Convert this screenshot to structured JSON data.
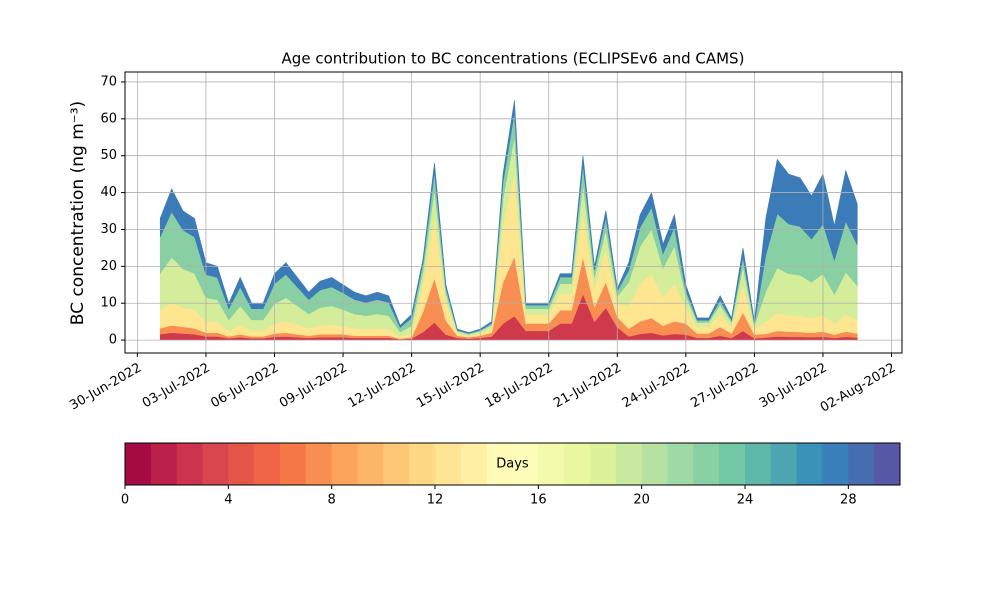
{
  "chart_data": {
    "type": "stacked_area",
    "title": "Age contribution to BC concentrations (ECLIPSEv6 and CAMS)",
    "y_label": "BC concentration (ng m⁻³)",
    "x": [
      "2022-07-01T00:00",
      "2022-07-01T12:00",
      "2022-07-02T00:00",
      "2022-07-02T12:00",
      "2022-07-03T00:00",
      "2022-07-03T12:00",
      "2022-07-04T00:00",
      "2022-07-04T12:00",
      "2022-07-05T00:00",
      "2022-07-05T12:00",
      "2022-07-06T00:00",
      "2022-07-06T12:00",
      "2022-07-07T00:00",
      "2022-07-07T12:00",
      "2022-07-08T00:00",
      "2022-07-08T12:00",
      "2022-07-09T00:00",
      "2022-07-09T12:00",
      "2022-07-10T00:00",
      "2022-07-10T12:00",
      "2022-07-11T00:00",
      "2022-07-11T12:00",
      "2022-07-12T00:00",
      "2022-07-12T12:00",
      "2022-07-13T00:00",
      "2022-07-13T12:00",
      "2022-07-14T00:00",
      "2022-07-14T12:00",
      "2022-07-15T00:00",
      "2022-07-15T12:00",
      "2022-07-16T00:00",
      "2022-07-16T12:00",
      "2022-07-17T00:00",
      "2022-07-17T12:00",
      "2022-07-18T00:00",
      "2022-07-18T12:00",
      "2022-07-19T00:00",
      "2022-07-19T12:00",
      "2022-07-20T00:00",
      "2022-07-20T12:00",
      "2022-07-21T00:00",
      "2022-07-21T12:00",
      "2022-07-22T00:00",
      "2022-07-22T12:00",
      "2022-07-23T00:00",
      "2022-07-23T12:00",
      "2022-07-24T00:00",
      "2022-07-24T12:00",
      "2022-07-25T00:00",
      "2022-07-25T12:00",
      "2022-07-26T00:00",
      "2022-07-26T12:00",
      "2022-07-27T00:00",
      "2022-07-27T12:00",
      "2022-07-28T00:00",
      "2022-07-28T12:00",
      "2022-07-29T00:00",
      "2022-07-29T12:00",
      "2022-07-30T00:00",
      "2022-07-30T12:00",
      "2022-07-31T00:00",
      "2022-07-31T12:00"
    ],
    "series": [
      {
        "color": "#d0384c",
        "values": [
          1.6,
          2,
          1.8,
          1.6,
          1,
          1,
          0.5,
          0.8,
          0.5,
          0.5,
          0.9,
          1,
          0.8,
          0.6,
          0.8,
          0.8,
          0.8,
          0.6,
          0.6,
          0.6,
          0.6,
          0.2,
          0.4,
          2.2,
          4.8,
          1.5,
          0.6,
          0.4,
          0.6,
          1,
          4.5,
          6.5,
          2.5,
          2.5,
          2.5,
          4.5,
          4.5,
          12.5,
          5,
          8.8,
          3.5,
          1,
          1.7,
          2,
          1.3,
          1.7,
          1.5,
          0.6,
          0.6,
          1.2,
          0.6,
          2.5,
          0.5,
          0.7,
          1,
          0.9,
          0.9,
          0.8,
          0.9,
          0.6,
          0.9,
          0.7
        ]
      },
      {
        "color": "#f98e52",
        "values": [
          1.6,
          2,
          1.8,
          1.6,
          1,
          1,
          0.5,
          0.8,
          0.5,
          0.5,
          0.9,
          1,
          0.8,
          0.6,
          0.8,
          0.8,
          0.8,
          0.6,
          0.6,
          0.6,
          0.6,
          0.2,
          0.4,
          5.5,
          12,
          3.8,
          0.6,
          0.4,
          0.6,
          1,
          11.2,
          16.2,
          2,
          2,
          2,
          3.6,
          3.6,
          10,
          4,
          7,
          2.8,
          2.1,
          3.4,
          4,
          2.6,
          3.4,
          3,
          1.2,
          1.2,
          2.4,
          1.2,
          5,
          1,
          1,
          1.5,
          1.4,
          1.3,
          1.2,
          1.4,
          0.9,
          1.4,
          1.1
        ]
      },
      {
        "color": "#fee590",
        "values": [
          5,
          6.2,
          5.2,
          5,
          3.2,
          3,
          1.5,
          2.6,
          1.5,
          1.5,
          2.7,
          3.2,
          2.6,
          2,
          2.4,
          2.6,
          2.2,
          2,
          1.8,
          2,
          1.8,
          0.6,
          1,
          7.7,
          16.8,
          5.2,
          0.6,
          0.4,
          0.6,
          1,
          15.8,
          22.8,
          2.5,
          2.5,
          2.5,
          4.5,
          4.5,
          12.5,
          5,
          8.8,
          3.5,
          6.3,
          10.2,
          12,
          7.8,
          10.2,
          4.5,
          1.8,
          1.8,
          3.6,
          1.8,
          7.5,
          1.5,
          3.3,
          4.9,
          4.5,
          4.4,
          3.9,
          4.5,
          3.1,
          4.6,
          3.7
        ]
      },
      {
        "color": "#d3ed9b",
        "values": [
          9.9,
          12.3,
          10.5,
          9.9,
          6.3,
          6,
          3,
          5.1,
          3,
          3,
          5.4,
          6.3,
          5.1,
          3.9,
          4.8,
          5.1,
          4.5,
          3.9,
          3.6,
          3.9,
          3.6,
          1.2,
          2.1,
          3.3,
          7.2,
          2.2,
          0.6,
          0.4,
          0.6,
          1,
          6.8,
          9.8,
          1.5,
          1.5,
          1.5,
          2.7,
          2.7,
          7.5,
          3,
          5.2,
          2.1,
          6.3,
          10.2,
          12,
          7.8,
          10.2,
          3,
          1.2,
          1.2,
          2.4,
          1.2,
          5,
          1,
          8.2,
          12.2,
          11.2,
          11,
          9.8,
          11.2,
          7.8,
          11.5,
          9.2
        ]
      },
      {
        "color": "#88cfa4",
        "values": [
          9.9,
          12.3,
          10.5,
          9.9,
          6.3,
          6,
          3,
          5.1,
          3,
          3,
          5.4,
          6.3,
          5.1,
          3.9,
          4.8,
          5.1,
          4.5,
          3.9,
          3.6,
          3.9,
          3.6,
          1.2,
          2.1,
          2.2,
          4.8,
          1.5,
          0.3,
          0.2,
          0.3,
          0.5,
          4.5,
          6.5,
          1,
          1,
          1,
          1.8,
          1.8,
          5,
          2,
          3.5,
          1.4,
          3.2,
          5.1,
          6,
          3.9,
          5.1,
          1.5,
          0.6,
          0.6,
          1.2,
          0.6,
          2.5,
          0.5,
          9.9,
          14.7,
          13.5,
          13.2,
          11.7,
          13.5,
          9.3,
          13.8,
          11.1
        ]
      },
      {
        "color": "#3b7bb8",
        "values": [
          5,
          6.2,
          5.2,
          5,
          3.2,
          3,
          1.5,
          2.6,
          1.5,
          1.5,
          2.7,
          3.2,
          2.6,
          2,
          2.4,
          2.6,
          2.2,
          2,
          1.8,
          2,
          1.8,
          0.6,
          1,
          1.1,
          2.4,
          0.8,
          0.3,
          0.2,
          0.3,
          0.5,
          2.2,
          3.2,
          0.5,
          0.5,
          0.5,
          0.9,
          0.9,
          2.5,
          1,
          1.8,
          0.7,
          2.1,
          3.4,
          4,
          2.6,
          3.4,
          1.5,
          0.6,
          0.6,
          1.2,
          0.6,
          2.5,
          0.5,
          9.9,
          14.7,
          13.5,
          13.2,
          11.7,
          13.5,
          9.3,
          13.8,
          11.1
        ]
      }
    ],
    "xlim": [
      "2022-06-29T11:00",
      "2022-08-02T11:00"
    ],
    "xticks": [
      {
        "value": "2022-06-30",
        "label": "30-Jun-2022"
      },
      {
        "value": "2022-07-03",
        "label": "03-Jul-2022"
      },
      {
        "value": "2022-07-06",
        "label": "06-Jul-2022"
      },
      {
        "value": "2022-07-09",
        "label": "09-Jul-2022"
      },
      {
        "value": "2022-07-12",
        "label": "12-Jul-2022"
      },
      {
        "value": "2022-07-15",
        "label": "15-Jul-2022"
      },
      {
        "value": "2022-07-18",
        "label": "18-Jul-2022"
      },
      {
        "value": "2022-07-21",
        "label": "21-Jul-2022"
      },
      {
        "value": "2022-07-24",
        "label": "24-Jul-2022"
      },
      {
        "value": "2022-07-27",
        "label": "27-Jul-2022"
      },
      {
        "value": "2022-07-30",
        "label": "30-Jul-2022"
      },
      {
        "value": "2022-08-02",
        "label": "02-Aug-2022"
      }
    ],
    "ylim": [
      -3.5,
      72.7
    ],
    "yticks": [
      0,
      10,
      20,
      30,
      40,
      50,
      60,
      70
    ],
    "grid": true,
    "colorbar": {
      "label": "Days",
      "lim": [
        0,
        30
      ],
      "ticks": [
        0,
        4,
        8,
        12,
        16,
        20,
        24,
        28
      ],
      "levels": 30,
      "colormap": [
        "#9e0142",
        "#d53e4f",
        "#f46d43",
        "#fdae61",
        "#fee08b",
        "#ffffbf",
        "#e6f598",
        "#abdda4",
        "#66c2a5",
        "#3288bd",
        "#5e4fa2"
      ]
    }
  }
}
